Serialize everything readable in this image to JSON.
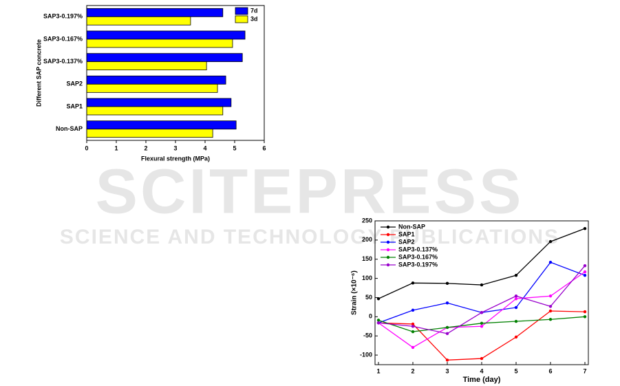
{
  "watermark": {
    "title": "SCITEPRESS",
    "subtitle": "SCIENCE AND TECHNOLOGY PUBLICATIONS"
  },
  "chart_data": [
    {
      "type": "hbar",
      "xlabel": "Flexural strength (MPa)",
      "ylabel": "Different SAP concrete",
      "categories": [
        "Non-SAP",
        "SAP1",
        "SAP2",
        "SAP3-0.137%",
        "SAP3-0.167%",
        "SAP3-0.197%"
      ],
      "series": [
        {
          "name": "7d",
          "color": "#0000ff",
          "values": [
            5.05,
            4.88,
            4.7,
            5.26,
            5.35,
            4.6
          ]
        },
        {
          "name": "3d",
          "color": "#ffff00",
          "values": [
            4.26,
            4.6,
            4.42,
            4.05,
            4.93,
            3.51
          ]
        }
      ],
      "xlim": [
        0,
        6
      ],
      "xticks": [
        0,
        1,
        2,
        3,
        4,
        5,
        6
      ],
      "legend": "upper right"
    },
    {
      "type": "line",
      "xlabel": "Time (day)",
      "ylabel": "Strain (×10⁻⁶)",
      "x": [
        1,
        2,
        3,
        4,
        5,
        6,
        7
      ],
      "series": [
        {
          "name": "Non-SAP",
          "color": "#000000",
          "values": [
            47,
            88,
            87,
            83,
            108,
            196,
            230
          ]
        },
        {
          "name": "SAP1",
          "color": "#ff0000",
          "values": [
            -16,
            -19,
            -113,
            -109,
            -53,
            15,
            13
          ]
        },
        {
          "name": "SAP2",
          "color": "#0000ff",
          "values": [
            -16,
            17,
            36,
            11,
            24,
            142,
            108
          ]
        },
        {
          "name": "SAP3-0.137%",
          "color": "#ff00ff",
          "values": [
            -16,
            -80,
            -28,
            -25,
            47,
            54,
            117
          ]
        },
        {
          "name": "SAP3-0.167%",
          "color": "#008000",
          "values": [
            -9,
            -39,
            -28,
            -17,
            -12,
            -7,
            0
          ]
        },
        {
          "name": "SAP3-0.197%",
          "color": "#9900cc",
          "values": [
            -16,
            -25,
            -44,
            11,
            54,
            27,
            133
          ]
        }
      ],
      "xlim": [
        0.9,
        7.1
      ],
      "xticks": [
        1,
        2,
        3,
        4,
        5,
        6,
        7
      ],
      "ylim": [
        -125,
        250
      ],
      "yticks": [
        -100,
        -50,
        0,
        50,
        100,
        150,
        200,
        250
      ],
      "legend": "upper left"
    }
  ]
}
